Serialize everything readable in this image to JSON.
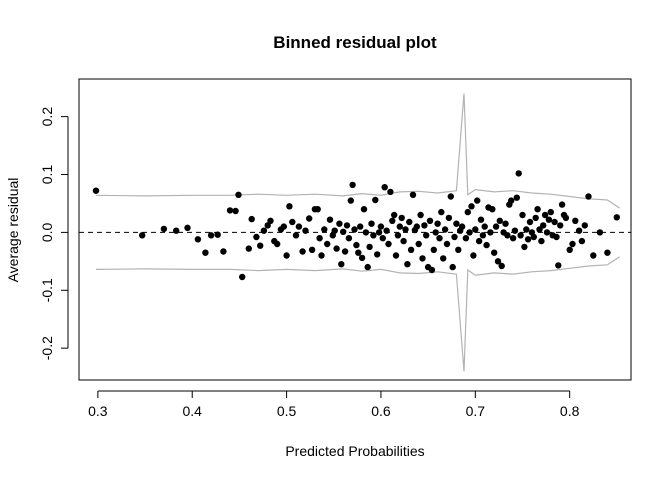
{
  "chart_data": {
    "type": "scatter",
    "title": "Binned residual plot",
    "xlabel": "Predicted Probabilities",
    "ylabel": "Average residual",
    "xlim": [
      0.28,
      0.865
    ],
    "ylim": [
      -0.255,
      0.265
    ],
    "x_ticks": [
      0.3,
      0.4,
      0.5,
      0.6,
      0.7,
      0.8
    ],
    "x_tick_labels": [
      "0.3",
      "0.4",
      "0.5",
      "0.6",
      "0.7",
      "0.8"
    ],
    "y_ticks": [
      -0.2,
      -0.1,
      0.0,
      0.1,
      0.2
    ],
    "y_tick_labels": [
      "-0.2",
      "-0.1",
      "0.0",
      "0.1",
      "0.2"
    ],
    "reference_line_y": 0,
    "point_color": "#000000",
    "bound_color": "#b3b3b3",
    "bound_upper": [
      [
        0.298,
        0.064
      ],
      [
        0.35,
        0.063
      ],
      [
        0.4,
        0.064
      ],
      [
        0.44,
        0.064
      ],
      [
        0.47,
        0.066
      ],
      [
        0.5,
        0.064
      ],
      [
        0.53,
        0.066
      ],
      [
        0.56,
        0.063
      ],
      [
        0.58,
        0.067
      ],
      [
        0.6,
        0.064
      ],
      [
        0.62,
        0.07
      ],
      [
        0.64,
        0.071
      ],
      [
        0.66,
        0.068
      ],
      [
        0.68,
        0.072
      ],
      [
        0.688,
        0.24
      ],
      [
        0.692,
        0.065
      ],
      [
        0.7,
        0.074
      ],
      [
        0.72,
        0.07
      ],
      [
        0.74,
        0.072
      ],
      [
        0.76,
        0.068
      ],
      [
        0.78,
        0.066
      ],
      [
        0.8,
        0.062
      ],
      [
        0.82,
        0.058
      ],
      [
        0.84,
        0.056
      ],
      [
        0.853,
        0.042
      ]
    ],
    "bound_lower": [
      [
        0.298,
        -0.064
      ],
      [
        0.35,
        -0.063
      ],
      [
        0.4,
        -0.064
      ],
      [
        0.44,
        -0.064
      ],
      [
        0.47,
        -0.066
      ],
      [
        0.5,
        -0.064
      ],
      [
        0.53,
        -0.066
      ],
      [
        0.56,
        -0.063
      ],
      [
        0.58,
        -0.067
      ],
      [
        0.6,
        -0.064
      ],
      [
        0.62,
        -0.07
      ],
      [
        0.64,
        -0.071
      ],
      [
        0.66,
        -0.068
      ],
      [
        0.68,
        -0.072
      ],
      [
        0.688,
        -0.24
      ],
      [
        0.692,
        -0.065
      ],
      [
        0.7,
        -0.074
      ],
      [
        0.72,
        -0.07
      ],
      [
        0.74,
        -0.072
      ],
      [
        0.76,
        -0.068
      ],
      [
        0.78,
        -0.066
      ],
      [
        0.8,
        -0.062
      ],
      [
        0.82,
        -0.058
      ],
      [
        0.84,
        -0.056
      ],
      [
        0.853,
        -0.042
      ]
    ],
    "points": [
      [
        0.298,
        0.072
      ],
      [
        0.347,
        -0.005
      ],
      [
        0.37,
        0.006
      ],
      [
        0.383,
        0.003
      ],
      [
        0.395,
        0.008
      ],
      [
        0.406,
        -0.012
      ],
      [
        0.414,
        -0.035
      ],
      [
        0.42,
        -0.005
      ],
      [
        0.427,
        -0.004
      ],
      [
        0.433,
        -0.033
      ],
      [
        0.44,
        0.038
      ],
      [
        0.446,
        0.037
      ],
      [
        0.449,
        0.065
      ],
      [
        0.453,
        -0.077
      ],
      [
        0.46,
        -0.028
      ],
      [
        0.463,
        0.023
      ],
      [
        0.468,
        -0.008
      ],
      [
        0.472,
        -0.023
      ],
      [
        0.476,
        0.003
      ],
      [
        0.48,
        0.012
      ],
      [
        0.483,
        0.02
      ],
      [
        0.487,
        -0.015
      ],
      [
        0.49,
        -0.02
      ],
      [
        0.494,
        0.005
      ],
      [
        0.497,
        0.01
      ],
      [
        0.5,
        -0.04
      ],
      [
        0.503,
        0.045
      ],
      [
        0.506,
        0.018
      ],
      [
        0.51,
        -0.005
      ],
      [
        0.513,
        0.01
      ],
      [
        0.517,
        -0.033
      ],
      [
        0.52,
        0.003
      ],
      [
        0.524,
        0.024
      ],
      [
        0.527,
        -0.03
      ],
      [
        0.53,
        0.04
      ],
      [
        0.533,
        0.04
      ],
      [
        0.535,
        -0.01
      ],
      [
        0.537,
        -0.04
      ],
      [
        0.54,
        0.005
      ],
      [
        0.543,
        -0.02
      ],
      [
        0.546,
        0.022
      ],
      [
        0.549,
        -0.005
      ],
      [
        0.551,
        0.003
      ],
      [
        0.553,
        -0.028
      ],
      [
        0.556,
        0.015
      ],
      [
        0.558,
        -0.055
      ],
      [
        0.56,
        0.001
      ],
      [
        0.562,
        -0.033
      ],
      [
        0.564,
        0.012
      ],
      [
        0.566,
        -0.01
      ],
      [
        0.568,
        0.055
      ],
      [
        0.57,
        0.082
      ],
      [
        0.572,
        0.005
      ],
      [
        0.574,
        -0.022
      ],
      [
        0.576,
        -0.035
      ],
      [
        0.578,
        0.01
      ],
      [
        0.58,
        -0.044
      ],
      [
        0.582,
        0.04
      ],
      [
        0.584,
        0.0
      ],
      [
        0.586,
        -0.06
      ],
      [
        0.588,
        -0.025
      ],
      [
        0.59,
        0.015
      ],
      [
        0.592,
        -0.005
      ],
      [
        0.594,
        0.056
      ],
      [
        0.596,
        -0.038
      ],
      [
        0.598,
        0.0
      ],
      [
        0.6,
        0.01
      ],
      [
        0.602,
        -0.01
      ],
      [
        0.604,
        0.078
      ],
      [
        0.606,
        0.003
      ],
      [
        0.608,
        -0.02
      ],
      [
        0.61,
        0.07
      ],
      [
        0.612,
        0.02
      ],
      [
        0.614,
        0.03
      ],
      [
        0.616,
        -0.04
      ],
      [
        0.618,
        -0.005
      ],
      [
        0.62,
        0.01
      ],
      [
        0.622,
        0.025
      ],
      [
        0.624,
        -0.015
      ],
      [
        0.626,
        0.005
      ],
      [
        0.628,
        -0.055
      ],
      [
        0.63,
        0.018
      ],
      [
        0.632,
        -0.03
      ],
      [
        0.634,
        0.065
      ],
      [
        0.636,
        0.004
      ],
      [
        0.638,
        0.01
      ],
      [
        0.64,
        -0.02
      ],
      [
        0.642,
        0.03
      ],
      [
        0.644,
        -0.045
      ],
      [
        0.646,
        0.012
      ],
      [
        0.648,
        -0.005
      ],
      [
        0.65,
        -0.06
      ],
      [
        0.652,
        0.02
      ],
      [
        0.654,
        -0.065
      ],
      [
        0.656,
        -0.03
      ],
      [
        0.658,
        0.0
      ],
      [
        0.66,
        0.015
      ],
      [
        0.662,
        -0.01
      ],
      [
        0.664,
        0.035
      ],
      [
        0.666,
        -0.045
      ],
      [
        0.668,
        0.005
      ],
      [
        0.67,
        -0.02
      ],
      [
        0.672,
        0.025
      ],
      [
        0.674,
        0.062
      ],
      [
        0.676,
        -0.06
      ],
      [
        0.678,
        -0.008
      ],
      [
        0.68,
        0.015
      ],
      [
        0.682,
        -0.03
      ],
      [
        0.684,
        0.003
      ],
      [
        0.686,
        0.01
      ],
      [
        0.69,
        -0.01
      ],
      [
        0.692,
        0.035
      ],
      [
        0.694,
        0.0
      ],
      [
        0.696,
        0.045
      ],
      [
        0.698,
        -0.04
      ],
      [
        0.7,
        0.005
      ],
      [
        0.702,
        0.055
      ],
      [
        0.704,
        -0.015
      ],
      [
        0.706,
        0.022
      ],
      [
        0.708,
        -0.005
      ],
      [
        0.71,
        0.01
      ],
      [
        0.712,
        -0.022
      ],
      [
        0.714,
        0.043
      ],
      [
        0.716,
        0.0
      ],
      [
        0.718,
        0.04
      ],
      [
        0.72,
        -0.035
      ],
      [
        0.722,
        0.01
      ],
      [
        0.724,
        -0.05
      ],
      [
        0.726,
        0.02
      ],
      [
        0.728,
        -0.058
      ],
      [
        0.73,
        0.0
      ],
      [
        0.732,
        0.015
      ],
      [
        0.734,
        -0.005
      ],
      [
        0.736,
        0.048
      ],
      [
        0.738,
        0.055
      ],
      [
        0.74,
        -0.01
      ],
      [
        0.742,
        0.003
      ],
      [
        0.744,
        0.06
      ],
      [
        0.746,
        0.102
      ],
      [
        0.748,
        -0.005
      ],
      [
        0.75,
        0.03
      ],
      [
        0.752,
        -0.025
      ],
      [
        0.754,
        0.005
      ],
      [
        0.756,
        -0.012
      ],
      [
        0.758,
        0.018
      ],
      [
        0.76,
        0.0
      ],
      [
        0.762,
        -0.008
      ],
      [
        0.764,
        0.025
      ],
      [
        0.766,
        0.04
      ],
      [
        0.768,
        0.005
      ],
      [
        0.77,
        -0.015
      ],
      [
        0.772,
        0.012
      ],
      [
        0.774,
        0.03
      ],
      [
        0.776,
        0.0
      ],
      [
        0.778,
        0.022
      ],
      [
        0.78,
        0.035
      ],
      [
        0.782,
        -0.005
      ],
      [
        0.784,
        0.018
      ],
      [
        0.786,
        -0.008
      ],
      [
        0.788,
        -0.057
      ],
      [
        0.79,
        0.012
      ],
      [
        0.792,
        0.048
      ],
      [
        0.794,
        0.03
      ],
      [
        0.796,
        0.025
      ],
      [
        0.8,
        -0.03
      ],
      [
        0.803,
        -0.02
      ],
      [
        0.806,
        0.02
      ],
      [
        0.81,
        0.003
      ],
      [
        0.813,
        -0.015
      ],
      [
        0.816,
        0.012
      ],
      [
        0.82,
        0.062
      ],
      [
        0.825,
        -0.04
      ],
      [
        0.832,
        0.0
      ],
      [
        0.84,
        -0.035
      ],
      [
        0.85,
        0.026
      ]
    ]
  }
}
